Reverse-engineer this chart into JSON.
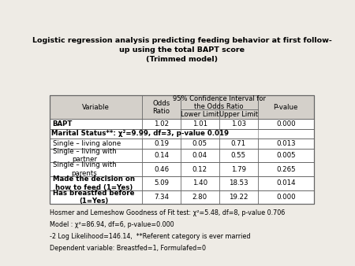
{
  "title": "Logistic regression analysis predicting feeding behavior at first follow-\nup using the total BAPT score\n(Trimmed model)",
  "rows": [
    {
      "variable": "BAPT",
      "odds": "1.02",
      "lower": "1.01",
      "upper": "1.03",
      "pvalue": "0.000",
      "bold": true,
      "span": false
    },
    {
      "variable": "Marital Status**: χ²=9.99, df=3, p-value 0.019",
      "odds": "",
      "lower": "",
      "upper": "",
      "pvalue": "",
      "bold": true,
      "span": true
    },
    {
      "variable": "Single – living alone",
      "odds": "0.19",
      "lower": "0.05",
      "upper": "0.71",
      "pvalue": "0.013",
      "bold": false,
      "span": false
    },
    {
      "variable": "Single – living with\npartner",
      "odds": "0.14",
      "lower": "0.04",
      "upper": "0.55",
      "pvalue": "0.005",
      "bold": false,
      "span": false
    },
    {
      "variable": "Single – living with\nparents",
      "odds": "0.46",
      "lower": "0.12",
      "upper": "1.79",
      "pvalue": "0.265",
      "bold": false,
      "span": false
    },
    {
      "variable": "Made the decision on\nhow to feed (1=Yes)",
      "odds": "5.09",
      "lower": "1.40",
      "upper": "18.53",
      "pvalue": "0.014",
      "bold": true,
      "span": false
    },
    {
      "variable": "Has breastfed before\n(1=Yes)",
      "odds": "7.34",
      "lower": "2.80",
      "upper": "19.22",
      "pvalue": "0.000",
      "bold": true,
      "span": false
    }
  ],
  "footer_lines": [
    "Hosmer and Lemeshow Goodness of Fit test: χ²=5.48, df=8, p-value 0.706",
    "Model : χ²=86.94, df=6, p-value=0.000",
    "-2 Log Likelihood=146.14,  **Referent category is ever married",
    "Dependent variable: Breastfed=1, Formulafed=0"
  ],
  "bg_color": "#eeebe5",
  "table_header_bg": "#d4d0ca",
  "line_color": "#666666",
  "white": "#ffffff"
}
